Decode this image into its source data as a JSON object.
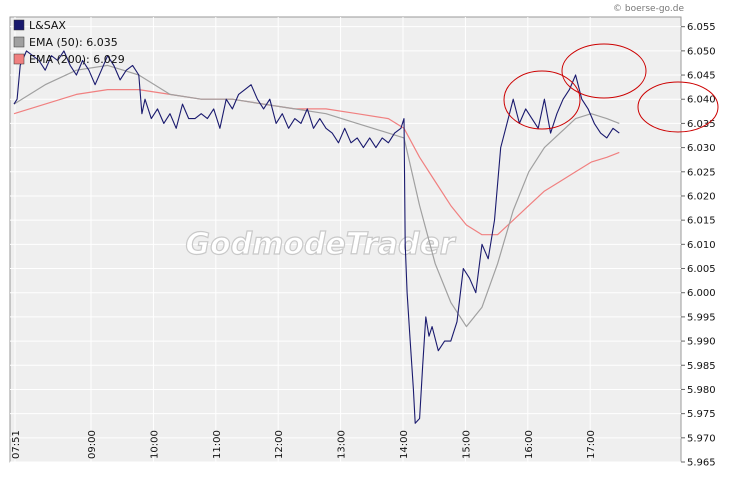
{
  "source": "© boerse-go.de",
  "watermark": "GodmodeTrader",
  "chart_data": {
    "type": "line",
    "ylim": [
      5.965,
      6.057
    ],
    "y_ticks": [
      "6.055",
      "6.050",
      "6.045",
      "6.040",
      "6.035",
      "6.030",
      "6.025",
      "6.020",
      "6.015",
      "6.010",
      "6.005",
      "6.000",
      "5.995",
      "5.990",
      "5.985",
      "5.980",
      "5.975",
      "5.970",
      "5.965"
    ],
    "x_ticks": [
      "07:51",
      "09:00",
      "10:00",
      "11:00",
      "12:00",
      "13:00",
      "14:00",
      "15:00",
      "16:00",
      "17:00"
    ],
    "grid": true,
    "legend_position": "top-left",
    "legend": [
      {
        "label": "L&SAX",
        "color": "#1a1a6e"
      },
      {
        "label": "EMA (50): 6.035",
        "color": "#a0a0a0"
      },
      {
        "label": "EMA (200): 6.029",
        "color": "#f08080"
      }
    ],
    "series": [
      {
        "name": "L&SAX",
        "color": "#1a1a6e",
        "points": [
          [
            0,
            6.039
          ],
          [
            0.05,
            6.04
          ],
          [
            0.1,
            6.047
          ],
          [
            0.2,
            6.05
          ],
          [
            0.3,
            6.049
          ],
          [
            0.4,
            6.048
          ],
          [
            0.5,
            6.046
          ],
          [
            0.6,
            6.049
          ],
          [
            0.7,
            6.048
          ],
          [
            0.8,
            6.05
          ],
          [
            0.9,
            6.047
          ],
          [
            1.0,
            6.045
          ],
          [
            1.1,
            6.048
          ],
          [
            1.2,
            6.046
          ],
          [
            1.3,
            6.043
          ],
          [
            1.4,
            6.046
          ],
          [
            1.5,
            6.049
          ],
          [
            1.6,
            6.047
          ],
          [
            1.7,
            6.044
          ],
          [
            1.8,
            6.046
          ],
          [
            1.9,
            6.047
          ],
          [
            2.0,
            6.045
          ],
          [
            2.05,
            6.037
          ],
          [
            2.1,
            6.04
          ],
          [
            2.2,
            6.036
          ],
          [
            2.3,
            6.038
          ],
          [
            2.4,
            6.035
          ],
          [
            2.5,
            6.037
          ],
          [
            2.6,
            6.034
          ],
          [
            2.7,
            6.039
          ],
          [
            2.8,
            6.036
          ],
          [
            2.9,
            6.036
          ],
          [
            3.0,
            6.037
          ],
          [
            3.1,
            6.036
          ],
          [
            3.2,
            6.038
          ],
          [
            3.3,
            6.034
          ],
          [
            3.4,
            6.04
          ],
          [
            3.5,
            6.038
          ],
          [
            3.6,
            6.041
          ],
          [
            3.7,
            6.042
          ],
          [
            3.8,
            6.043
          ],
          [
            3.9,
            6.04
          ],
          [
            4.0,
            6.038
          ],
          [
            4.1,
            6.04
          ],
          [
            4.2,
            6.035
          ],
          [
            4.3,
            6.037
          ],
          [
            4.4,
            6.034
          ],
          [
            4.5,
            6.036
          ],
          [
            4.6,
            6.035
          ],
          [
            4.7,
            6.038
          ],
          [
            4.8,
            6.034
          ],
          [
            4.9,
            6.036
          ],
          [
            5.0,
            6.034
          ],
          [
            5.1,
            6.033
          ],
          [
            5.2,
            6.031
          ],
          [
            5.3,
            6.034
          ],
          [
            5.4,
            6.031
          ],
          [
            5.5,
            6.032
          ],
          [
            5.6,
            6.03
          ],
          [
            5.7,
            6.032
          ],
          [
            5.8,
            6.03
          ],
          [
            5.9,
            6.032
          ],
          [
            6.0,
            6.031
          ],
          [
            6.1,
            6.033
          ],
          [
            6.2,
            6.034
          ],
          [
            6.25,
            6.036
          ],
          [
            6.27,
            6.01
          ],
          [
            6.3,
            6.0
          ],
          [
            6.35,
            5.99
          ],
          [
            6.4,
            5.98
          ],
          [
            6.43,
            5.973
          ],
          [
            6.5,
            5.974
          ],
          [
            6.55,
            5.985
          ],
          [
            6.6,
            5.995
          ],
          [
            6.65,
            5.991
          ],
          [
            6.7,
            5.993
          ],
          [
            6.8,
            5.988
          ],
          [
            6.9,
            5.99
          ],
          [
            7.0,
            5.99
          ],
          [
            7.1,
            5.994
          ],
          [
            7.2,
            6.005
          ],
          [
            7.3,
            6.003
          ],
          [
            7.4,
            6.0
          ],
          [
            7.5,
            6.01
          ],
          [
            7.6,
            6.007
          ],
          [
            7.7,
            6.015
          ],
          [
            7.8,
            6.03
          ],
          [
            7.9,
            6.035
          ],
          [
            8.0,
            6.04
          ],
          [
            8.1,
            6.035
          ],
          [
            8.2,
            6.038
          ],
          [
            8.3,
            6.036
          ],
          [
            8.4,
            6.034
          ],
          [
            8.5,
            6.04
          ],
          [
            8.6,
            6.033
          ],
          [
            8.7,
            6.037
          ],
          [
            8.8,
            6.04
          ],
          [
            8.9,
            6.042
          ],
          [
            9.0,
            6.045
          ],
          [
            9.1,
            6.04
          ],
          [
            9.2,
            6.038
          ],
          [
            9.3,
            6.035
          ],
          [
            9.4,
            6.033
          ],
          [
            9.5,
            6.032
          ],
          [
            9.6,
            6.034
          ],
          [
            9.7,
            6.033
          ]
        ]
      },
      {
        "name": "EMA (50): 6.035",
        "color": "#a0a0a0",
        "points": [
          [
            0,
            6.039
          ],
          [
            0.5,
            6.043
          ],
          [
            1.0,
            6.046
          ],
          [
            1.5,
            6.047
          ],
          [
            2.0,
            6.045
          ],
          [
            2.5,
            6.041
          ],
          [
            3.0,
            6.04
          ],
          [
            3.5,
            6.04
          ],
          [
            4.0,
            6.039
          ],
          [
            4.5,
            6.038
          ],
          [
            5.0,
            6.037
          ],
          [
            5.5,
            6.035
          ],
          [
            6.0,
            6.033
          ],
          [
            6.25,
            6.032
          ],
          [
            6.5,
            6.018
          ],
          [
            6.75,
            6.006
          ],
          [
            7.0,
            5.998
          ],
          [
            7.25,
            5.993
          ],
          [
            7.5,
            5.997
          ],
          [
            7.75,
            6.006
          ],
          [
            8.0,
            6.017
          ],
          [
            8.25,
            6.025
          ],
          [
            8.5,
            6.03
          ],
          [
            8.75,
            6.033
          ],
          [
            9.0,
            6.036
          ],
          [
            9.25,
            6.037
          ],
          [
            9.5,
            6.036
          ],
          [
            9.7,
            6.035
          ]
        ]
      },
      {
        "name": "EMA (200): 6.029",
        "color": "#f08080",
        "points": [
          [
            0,
            6.037
          ],
          [
            0.5,
            6.039
          ],
          [
            1.0,
            6.041
          ],
          [
            1.5,
            6.042
          ],
          [
            2.0,
            6.042
          ],
          [
            2.5,
            6.041
          ],
          [
            3.0,
            6.04
          ],
          [
            3.5,
            6.04
          ],
          [
            4.0,
            6.039
          ],
          [
            4.5,
            6.038
          ],
          [
            5.0,
            6.038
          ],
          [
            5.5,
            6.037
          ],
          [
            6.0,
            6.036
          ],
          [
            6.25,
            6.034
          ],
          [
            6.5,
            6.028
          ],
          [
            6.75,
            6.023
          ],
          [
            7.0,
            6.018
          ],
          [
            7.25,
            6.014
          ],
          [
            7.5,
            6.012
          ],
          [
            7.75,
            6.012
          ],
          [
            8.0,
            6.015
          ],
          [
            8.25,
            6.018
          ],
          [
            8.5,
            6.021
          ],
          [
            8.75,
            6.023
          ],
          [
            9.0,
            6.025
          ],
          [
            9.25,
            6.027
          ],
          [
            9.5,
            6.028
          ],
          [
            9.7,
            6.029
          ]
        ]
      }
    ]
  }
}
